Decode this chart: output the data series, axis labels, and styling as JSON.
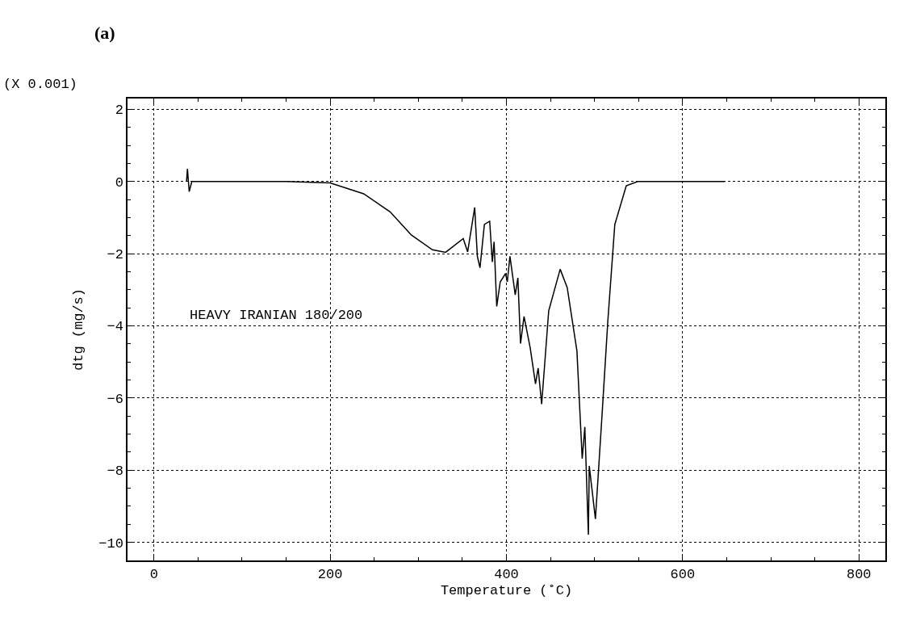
{
  "chart_data": {
    "type": "line",
    "title": "(a)",
    "xlabel": "Temperature (˚C)",
    "ylabel": "dtg (mg/s)",
    "annotations": [
      "(X 0.001)"
    ],
    "series": [
      {
        "name": "HEAVY IRANIAN 180/200",
        "color": "#000000",
        "x": [
          37,
          38,
          40,
          43,
          60,
          100,
          150,
          200,
          238,
          268,
          292,
          316,
          331,
          351,
          356,
          364,
          367,
          370,
          375,
          381,
          384,
          386,
          389,
          393,
          399,
          401,
          404,
          410,
          413,
          416,
          420,
          427,
          433,
          436,
          440,
          448,
          461,
          469,
          480,
          486,
          489,
          493,
          494,
          501,
          509,
          515,
          523,
          536,
          549,
          600,
          648
        ],
        "values": [
          0,
          0.35,
          -0.28,
          0,
          0,
          0,
          0,
          -0.04,
          -0.34,
          -0.84,
          -1.48,
          -1.89,
          -1.96,
          -1.58,
          -1.95,
          -0.72,
          -2.07,
          -2.39,
          -1.19,
          -1.1,
          -2.23,
          -1.67,
          -3.46,
          -2.78,
          -2.55,
          -2.78,
          -2.07,
          -3.14,
          -2.67,
          -4.49,
          -3.74,
          -4.61,
          -5.61,
          -5.17,
          -6.17,
          -3.58,
          -2.43,
          -2.94,
          -4.69,
          -7.68,
          -6.8,
          -9.79,
          -7.88,
          -9.35,
          -6.28,
          -3.9,
          -1.19,
          -0.12,
          0,
          0,
          0
        ]
      }
    ],
    "xlim": [
      -30,
      830
    ],
    "xticks": [
      0,
      200,
      400,
      600,
      800
    ],
    "ylim": [
      -10.5,
      2.3
    ],
    "yticks": [
      -10,
      -8,
      -6,
      -4,
      -2,
      0,
      2
    ],
    "grid": true,
    "line_style": "solid",
    "marker": "none",
    "legend": false
  }
}
